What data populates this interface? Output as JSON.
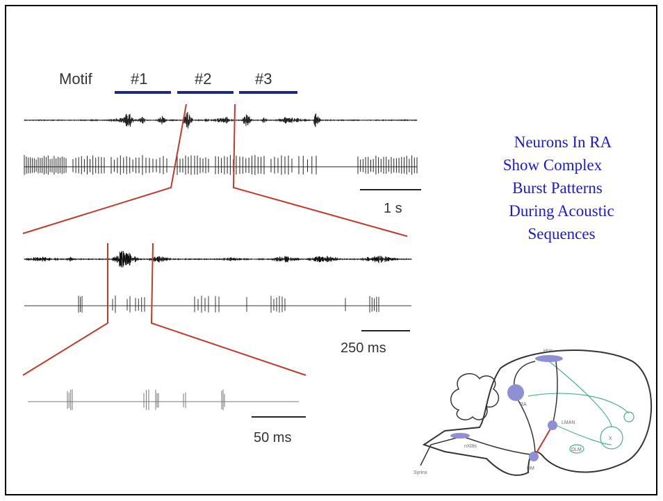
{
  "slide": {
    "title_lines": [
      "Neurons In RA",
      "Show Complex",
      "Burst Patterns",
      "During Acoustic",
      "Sequences"
    ],
    "figure": {
      "motif_label": "Motif",
      "motifs": [
        "#1",
        "#2",
        "#3"
      ],
      "scale_bars": [
        "1 s",
        "250 ms",
        "50 ms"
      ]
    },
    "diagram": {
      "labels": [
        "HVc",
        "RA",
        "LMAN",
        "X",
        "DLM",
        "nXIIts",
        "DM",
        "Syrinx"
      ]
    }
  }
}
